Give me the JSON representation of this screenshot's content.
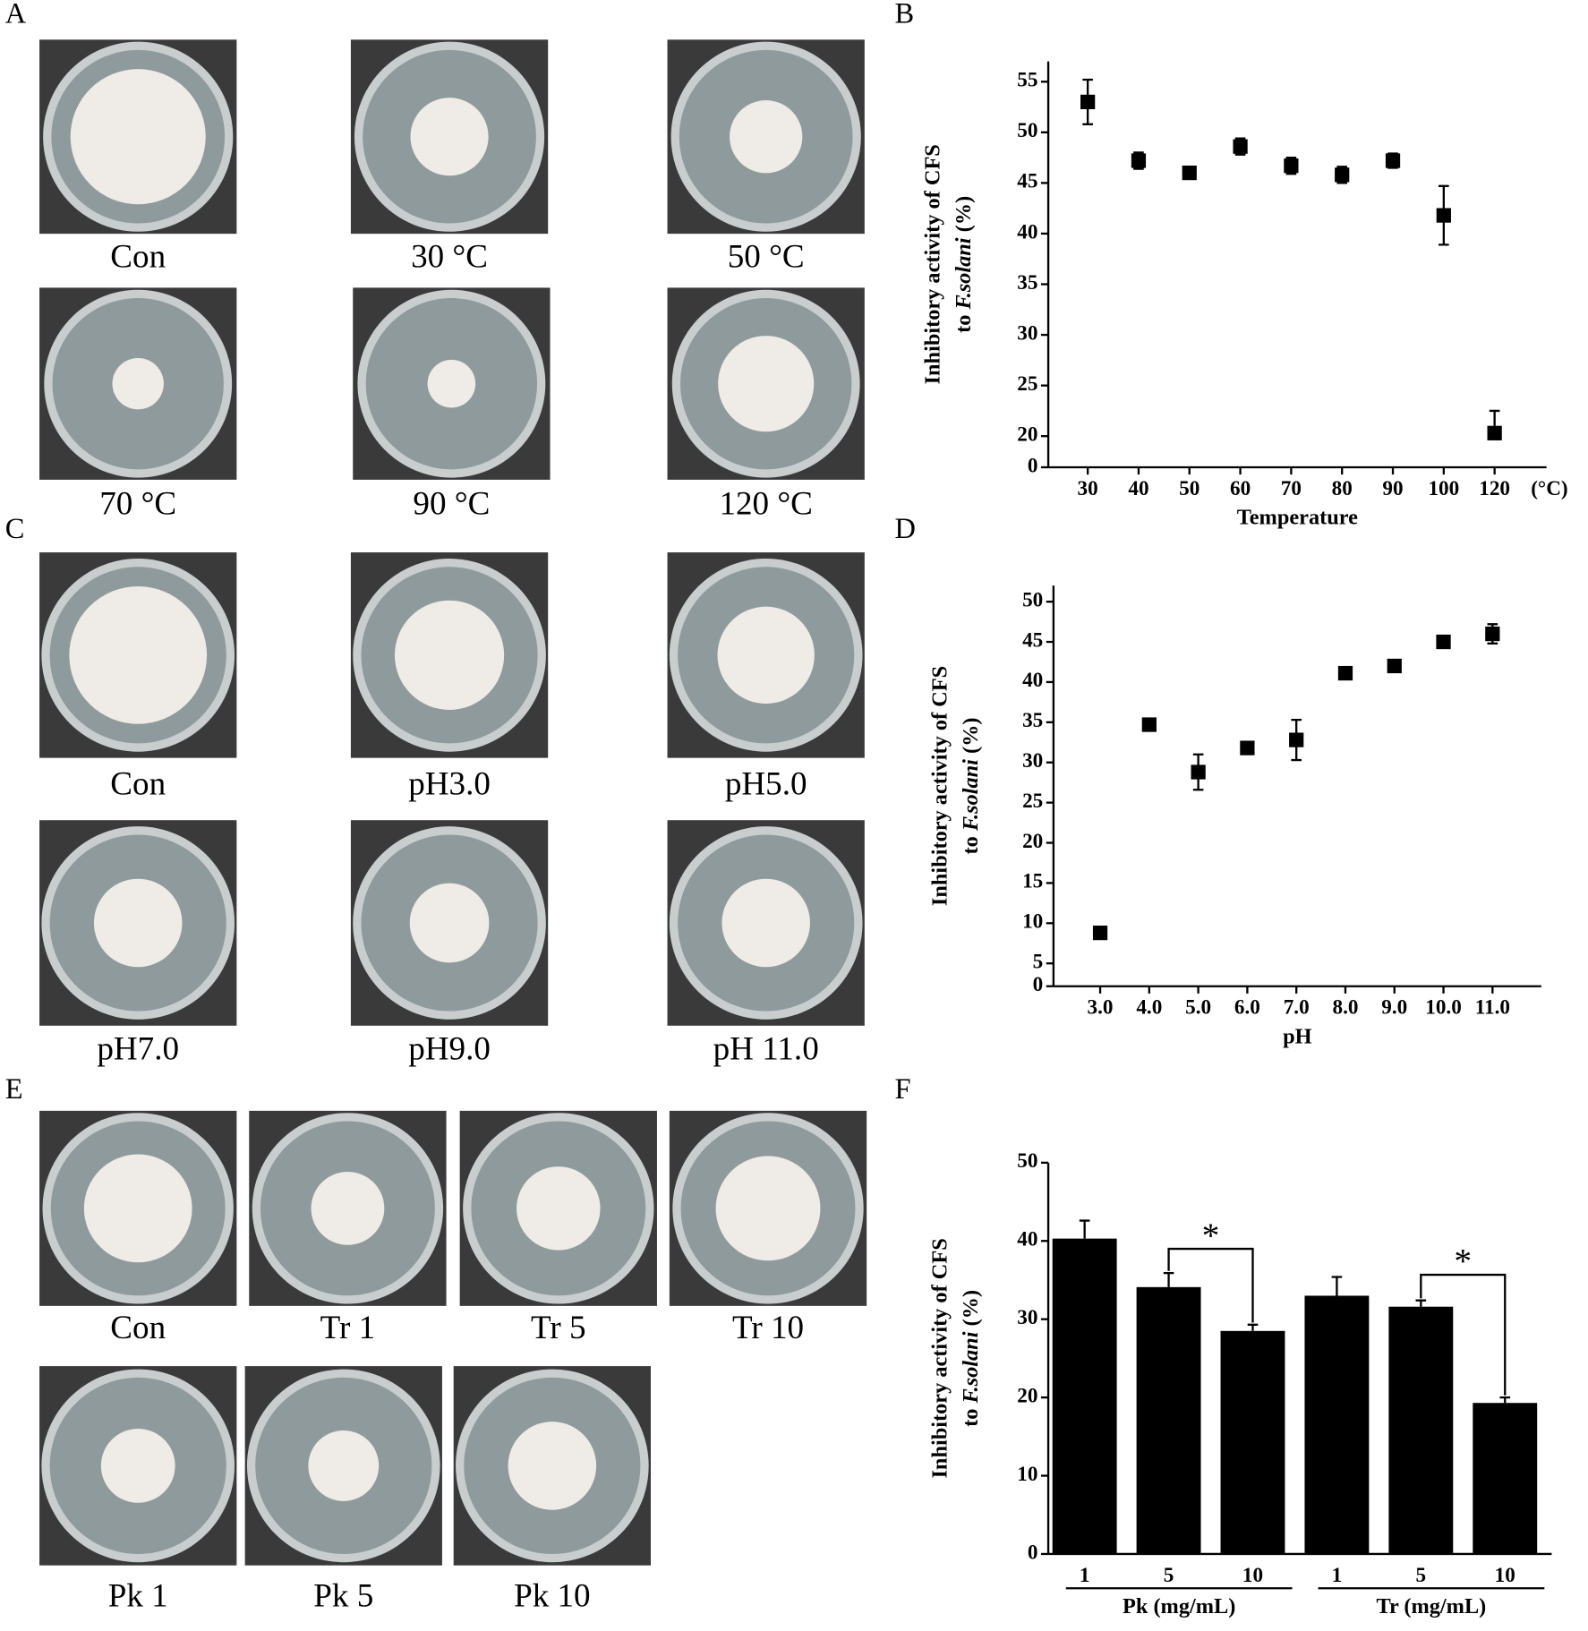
{
  "photo_panels": [
    {
      "letter": "A",
      "captions": [
        "Con",
        "30 °C",
        "50 °C",
        "70 °C",
        "90 °C",
        "120 °C"
      ]
    },
    {
      "letter": "C",
      "captions": [
        "Con",
        "pH3.0",
        "pH5.0",
        "pH7.0",
        "pH9.0",
        "pH 11.0"
      ]
    },
    {
      "letter": "E",
      "captions": [
        "Con",
        "Tr 1",
        "Tr 5",
        "Tr 10",
        "Pk 1",
        "Pk 5",
        "Pk 10"
      ]
    }
  ],
  "chart_data": [
    {
      "type": "scatter",
      "letter": "B",
      "categories": [
        "30",
        "40",
        "50",
        "60",
        "70",
        "80",
        "90",
        "100",
        "120"
      ],
      "values": [
        53,
        47.2,
        46,
        48.6,
        46.7,
        45.8,
        47.2,
        41.8,
        20.3
      ],
      "errors": [
        2.2,
        0.8,
        0.5,
        0.8,
        0.8,
        0.8,
        0.7,
        2.9,
        2.2
      ],
      "xlabel": "Temperature",
      "xunit": "(°C)",
      "ylabel": [
        "Inhibitory activity of CFS",
        "to ",
        "F.solani",
        " (%)"
      ],
      "ylim": [
        0,
        57
      ],
      "yticks": [
        0,
        20,
        25,
        30,
        35,
        40,
        45,
        50,
        55
      ],
      "color": "#000000"
    },
    {
      "type": "scatter",
      "letter": "D",
      "categories": [
        "3.0",
        "4.0",
        "5.0",
        "6.0",
        "7.0",
        "8.0",
        "9.0",
        "10.0",
        "11.0"
      ],
      "values": [
        8.8,
        34.7,
        28.8,
        31.8,
        32.8,
        41.1,
        42,
        45,
        46
      ],
      "errors": [
        0.6,
        0.6,
        2.2,
        0.7,
        2.5,
        0.6,
        0.6,
        0.6,
        1.2
      ],
      "xlabel": "pH",
      "ylabel": [
        "Inhibitory activity of CFS",
        "to ",
        "F.solani",
        " (%)"
      ],
      "ylim": [
        0,
        52
      ],
      "yticks": [
        0,
        5,
        10,
        15,
        20,
        25,
        30,
        35,
        40,
        45,
        50
      ],
      "color": "#000000"
    },
    {
      "type": "bar",
      "letter": "F",
      "categories": [
        "1",
        "5",
        "10",
        "1",
        "5",
        "10"
      ],
      "groups": [
        "Pk (mg/mL)",
        "Tr (mg/mL)"
      ],
      "values": [
        40.3,
        34.1,
        28.5,
        33,
        31.6,
        19.3
      ],
      "errors": [
        2.3,
        1.8,
        0.8,
        2.4,
        0.8,
        0.7
      ],
      "annotations": [
        "*",
        "*"
      ],
      "ylabel": [
        "Inhibitory activity of CFS",
        "to ",
        "F.solani",
        " (%)"
      ],
      "ylim": [
        0,
        50
      ],
      "yticks": [
        0,
        10,
        20,
        30,
        40,
        50
      ],
      "color": "#000000"
    }
  ]
}
